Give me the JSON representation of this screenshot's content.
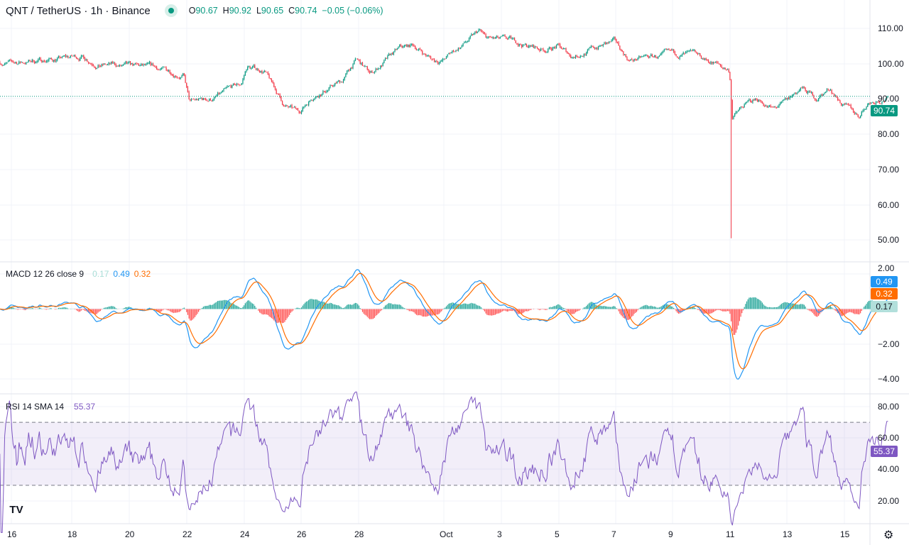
{
  "header": {
    "symbol": "QNT / TetherUS · 1h · Binance",
    "open_label": "O",
    "open": "90.67",
    "high_label": "H",
    "high": "90.92",
    "low_label": "L",
    "low": "90.65",
    "close_label": "C",
    "close": "90.74",
    "change": "−0.05 (−0.06%)",
    "status_color": "#089981"
  },
  "macd": {
    "label": "MACD 12 26 close 9",
    "hist": "0.17",
    "macd": "0.49",
    "signal": "0.32",
    "hist_tag": "0.17",
    "macd_tag": "0.49",
    "signal_tag": "0.32",
    "colors": {
      "macd": "#2196f3",
      "signal": "#ff6d00",
      "hist_up": "#26a69a",
      "hist_down": "#ff5252"
    }
  },
  "rsi": {
    "label": "RSI 14 SMA 14",
    "value": "55.37",
    "tag": "55.37",
    "color": "#7e57c2"
  },
  "price_tag": "90.74",
  "price_axis": [
    "110.00",
    "100.00",
    "90.00",
    "80.00",
    "70.00",
    "60.00",
    "50.00"
  ],
  "macd_axis": [
    "2.00",
    "−2.00",
    "−4.00"
  ],
  "rsi_axis": [
    "80.00",
    "60.00",
    "40.00",
    "20.00"
  ],
  "time_axis": [
    "16",
    "18",
    "20",
    "22",
    "24",
    "26",
    "28",
    "Oct",
    "3",
    "5",
    "7",
    "9",
    "11",
    "13",
    "15"
  ],
  "logo": "TV",
  "settings_icon": "gear-icon",
  "chart_data": {
    "type": "candlestick",
    "interval": "1h",
    "colors": {
      "up": "#089981",
      "down": "#f23645"
    },
    "ylim": [
      50,
      110
    ],
    "approx_close_path_day_of_sep_price": [
      [
        15.6,
        100.5
      ],
      [
        16,
        100
      ],
      [
        17,
        101
      ],
      [
        18.5,
        102
      ],
      [
        19,
        100
      ],
      [
        20,
        99
      ],
      [
        21,
        98.5
      ],
      [
        22,
        97
      ],
      [
        22.2,
        89
      ],
      [
        23,
        90
      ],
      [
        24,
        94
      ],
      [
        24.2,
        99
      ],
      [
        24.8,
        98
      ],
      [
        25.5,
        88
      ],
      [
        26,
        86
      ],
      [
        26.5,
        91
      ],
      [
        27.5,
        95
      ],
      [
        28,
        101
      ],
      [
        28.5,
        97
      ],
      [
        29.5,
        104
      ],
      [
        30,
        105
      ],
      [
        30.7,
        101
      ],
      [
        31,
        101
      ],
      [
        31.5,
        104
      ],
      [
        32.3,
        109
      ],
      [
        32.5,
        107
      ],
      [
        33.5,
        106
      ],
      [
        34.5,
        104
      ],
      [
        35,
        105
      ],
      [
        35.5,
        102
      ],
      [
        36.5,
        105
      ],
      [
        37,
        106
      ],
      [
        37.5,
        101
      ],
      [
        38.5,
        102
      ],
      [
        39.5,
        102.5
      ],
      [
        40.5,
        100
      ],
      [
        41,
        98
      ],
      [
        41.1,
        85
      ],
      [
        41.5,
        88
      ],
      [
        42,
        90
      ],
      [
        42.5,
        87
      ],
      [
        43,
        89
      ],
      [
        43.5,
        93
      ],
      [
        44,
        90
      ],
      [
        44.5,
        93
      ],
      [
        45,
        88
      ],
      [
        45.5,
        85
      ],
      [
        45.8,
        89
      ],
      [
        46.5,
        90.74
      ]
    ],
    "flash_crash": {
      "day_of_sep": 41.05,
      "low": 50.5
    }
  }
}
